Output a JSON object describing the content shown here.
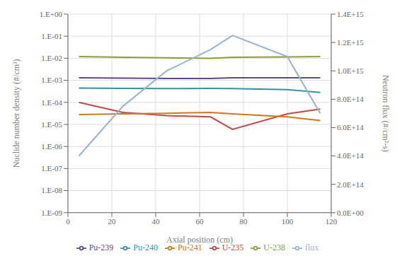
{
  "chart_data": {
    "type": "line",
    "xlabel": "Axial position (cm)",
    "ylabel": "Nuclide number  density (#/cm³)",
    "y2label": "Neutron flux (#/cm²-s)",
    "x": [
      5,
      25,
      45,
      65,
      75,
      100,
      115
    ],
    "xlim": [
      0,
      120
    ],
    "xticks": [
      0,
      20,
      40,
      60,
      80,
      100,
      120
    ],
    "log": "y",
    "ylim": [
      1e-09,
      1
    ],
    "yticks": [
      {
        "value": 1e-09,
        "label": "1.E-09"
      },
      {
        "value": 1e-08,
        "label": "1.E-08"
      },
      {
        "value": 1e-07,
        "label": "1.E-07"
      },
      {
        "value": 1e-06,
        "label": "1.E-06"
      },
      {
        "value": 1e-05,
        "label": "1.E-05"
      },
      {
        "value": 0.0001,
        "label": "1.E-04"
      },
      {
        "value": 0.001,
        "label": "1.E-03"
      },
      {
        "value": 0.01,
        "label": "1.E-02"
      },
      {
        "value": 0.1,
        "label": "1.E-01"
      },
      {
        "value": 1,
        "label": "1.E+00"
      }
    ],
    "y2lim": [
      0,
      1400000000000000.0
    ],
    "y2ticks": [
      {
        "value": 0,
        "label": "0.0E+00"
      },
      {
        "value": 200000000000000.0,
        "label": "2.0E+14"
      },
      {
        "value": 400000000000000.0,
        "label": "4.0E+14"
      },
      {
        "value": 600000000000000.0,
        "label": "6.0E+14"
      },
      {
        "value": 800000000000000.0,
        "label": "8.0E+14"
      },
      {
        "value": 1000000000000000.0,
        "label": "1.0E+15"
      },
      {
        "value": 1200000000000000.0,
        "label": "1.2E+15"
      },
      {
        "value": 1400000000000000.0,
        "label": "1.4E+15"
      }
    ],
    "grid": true,
    "legend": "bottom",
    "series": [
      {
        "name": "U-235",
        "color": "#be4b48",
        "values": [
          0.0001,
          3.5e-05,
          2.5e-05,
          2.2e-05,
          6e-06,
          3e-05,
          5e-05
        ]
      },
      {
        "name": "U-238",
        "color": "#8c9e3a",
        "values": [
          0.012,
          0.011,
          0.0105,
          0.01,
          0.011,
          0.0115,
          0.012
        ]
      },
      {
        "name": "Pu-239",
        "color": "#5e4a8a",
        "values": [
          0.0013,
          0.00125,
          0.0012,
          0.0012,
          0.0013,
          0.0013,
          0.0013
        ]
      },
      {
        "name": "Pu-240",
        "color": "#3b8fa0",
        "values": [
          0.00045,
          0.00043,
          0.00042,
          0.00043,
          0.00042,
          0.00038,
          0.00028
        ]
      },
      {
        "name": "Pu-241",
        "color": "#d07820",
        "values": [
          2.8e-05,
          3e-05,
          3.2e-05,
          3.5e-05,
          3e-05,
          2.2e-05,
          1.5e-05
        ]
      },
      {
        "name": "flux",
        "color": "#9ab4cc",
        "axis": "y2",
        "values": [
          400000000000000.0,
          750000000000000.0,
          1000000000000000.0,
          1150000000000000.0,
          1250000000000000.0,
          1100000000000000.0,
          700000000000000.0
        ]
      }
    ]
  }
}
